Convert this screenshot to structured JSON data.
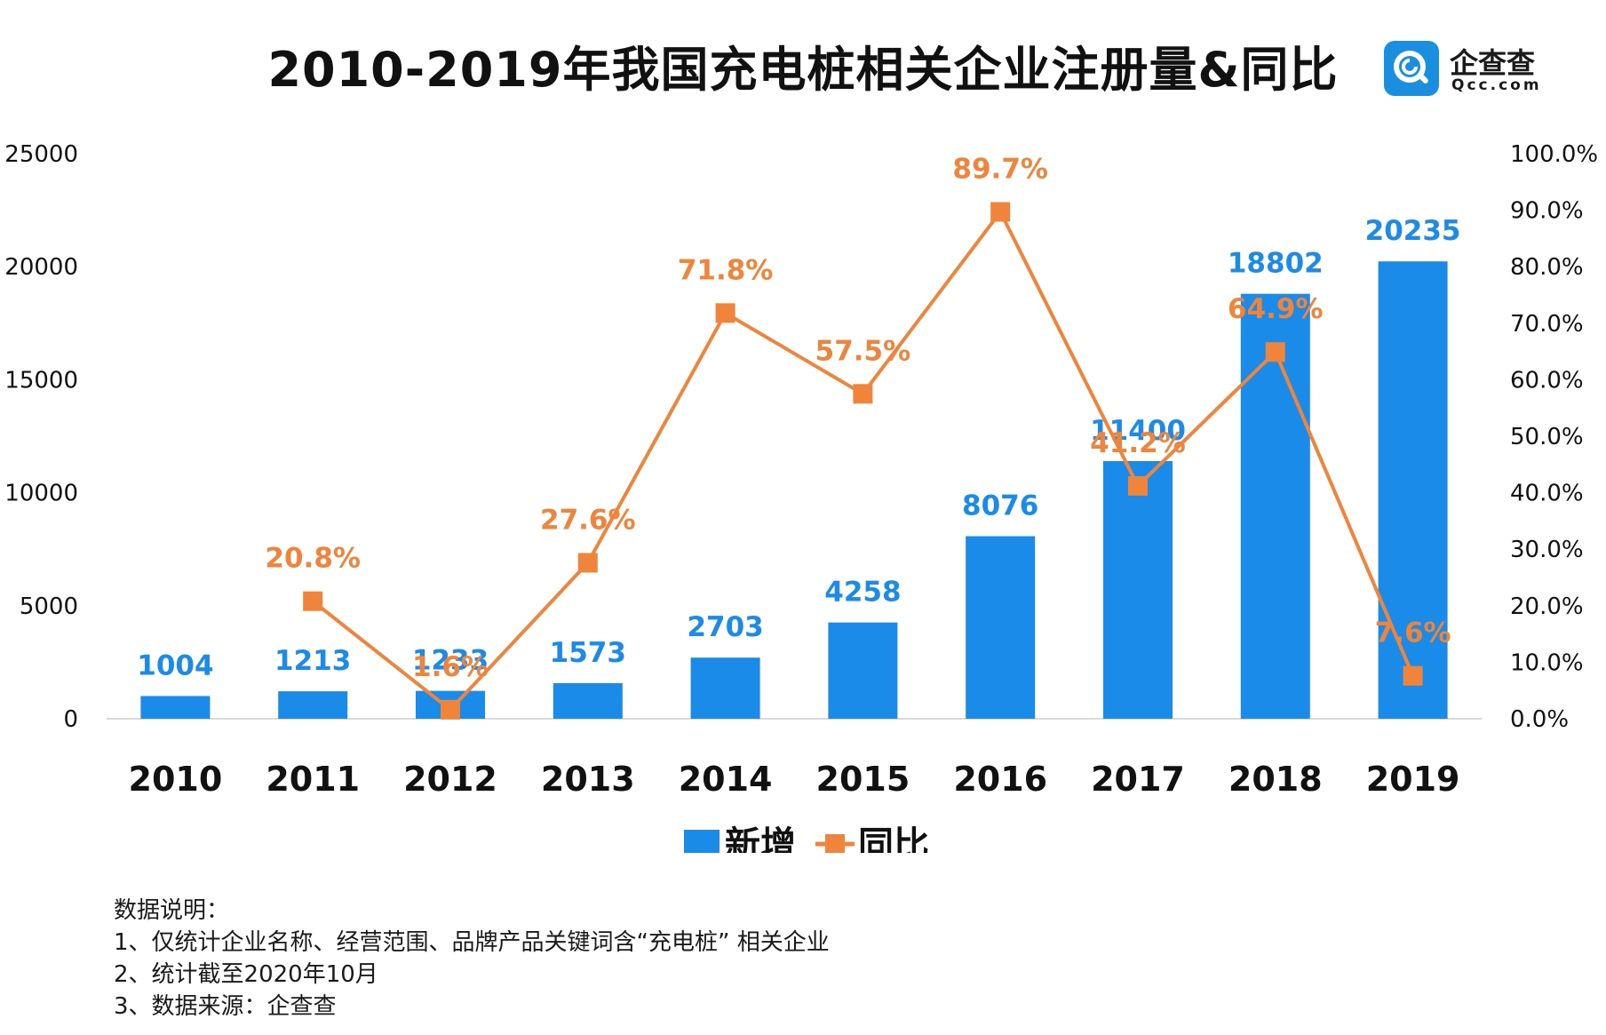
{
  "title": "2010-2019年我国充电桩相关企业注册量&同比",
  "logo": {
    "name": "企查查",
    "domain": "Qcc.com",
    "icon": "qcc-magnifier-icon",
    "color": "#1a8fe0"
  },
  "notes": {
    "heading": "数据说明：",
    "lines": [
      "1、仅统计企业名称、经营范围、品牌产品关键词含“充电桩” 相关企业",
      "2、统计截至2020年10月",
      "3、数据来源：企查查"
    ]
  },
  "chart_data": {
    "type": "bar",
    "title": "2010-2019年我国充电桩相关企业注册量&同比",
    "categories": [
      "2010",
      "2011",
      "2012",
      "2013",
      "2014",
      "2015",
      "2016",
      "2017",
      "2018",
      "2019"
    ],
    "series": [
      {
        "name": "新增",
        "type": "bar",
        "axis": "left",
        "color": "#1a8be8",
        "values": [
          1004,
          1213,
          1233,
          1573,
          2703,
          4258,
          8076,
          11400,
          18802,
          20235
        ],
        "labels": [
          "1004",
          "1213",
          "1233",
          "1573",
          "2703",
          "4258",
          "8076",
          "11400",
          "18802",
          "20235"
        ]
      },
      {
        "name": "同比",
        "type": "line",
        "axis": "right",
        "color": "#f0843a",
        "values": [
          null,
          20.8,
          1.6,
          27.6,
          71.8,
          57.5,
          89.7,
          41.2,
          64.9,
          7.6
        ],
        "labels": [
          null,
          "20.8%",
          "1.6%",
          "27.6%",
          "71.8%",
          "57.5%",
          "89.7%",
          "41.2%",
          "64.9%",
          "7.6%"
        ]
      }
    ],
    "y_left": {
      "min": 0,
      "max": 25000,
      "ticks": [
        "0",
        "5000",
        "10000",
        "15000",
        "20000",
        "25000"
      ]
    },
    "y_right": {
      "min": 0,
      "max": 100,
      "ticks": [
        "0.0%",
        "10.0%",
        "20.0%",
        "30.0%",
        "40.0%",
        "50.0%",
        "60.0%",
        "70.0%",
        "80.0%",
        "90.0%",
        "100.0%"
      ]
    },
    "xlabel": "",
    "ylabel": "",
    "grid": false,
    "legend": "bottom-center"
  }
}
